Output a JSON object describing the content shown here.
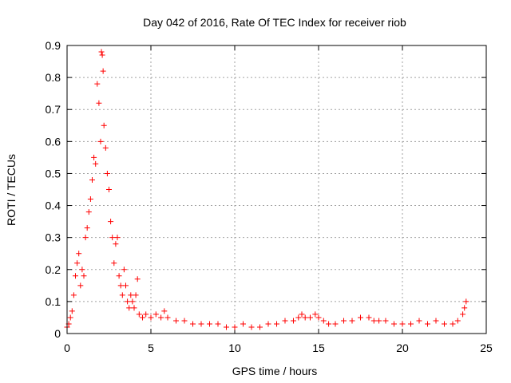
{
  "chart_data": {
    "type": "scatter",
    "title": "Day 042 of 2016, Rate Of TEC Index for receiver riob",
    "xlabel": "GPS time / hours",
    "ylabel": "ROTI / TECUs",
    "xlim": [
      0,
      25
    ],
    "ylim": [
      0,
      0.9
    ],
    "xticks": [
      0,
      5,
      10,
      15,
      20,
      25
    ],
    "xtick_labels": [
      "0",
      "5",
      "10",
      "15",
      "20",
      "25"
    ],
    "yticks": [
      0,
      0.1,
      0.2,
      0.3,
      0.4,
      0.5,
      0.6,
      0.7,
      0.8,
      0.9
    ],
    "ytick_labels": [
      "0",
      "0.1",
      "0.2",
      "0.3",
      "0.4",
      "0.5",
      "0.6",
      "0.7",
      "0.8",
      "0.9"
    ],
    "grid": true,
    "marker": "plus",
    "color": "#ff0000",
    "series": [
      {
        "name": "ROTI",
        "x": [
          0.0,
          0.1,
          0.2,
          0.3,
          0.4,
          0.5,
          0.6,
          0.7,
          0.8,
          0.9,
          1.0,
          1.1,
          1.2,
          1.3,
          1.4,
          1.5,
          1.6,
          1.7,
          1.8,
          1.9,
          2.0,
          2.05,
          2.1,
          2.15,
          2.2,
          2.3,
          2.4,
          2.5,
          2.6,
          2.7,
          2.8,
          2.9,
          3.0,
          3.1,
          3.2,
          3.3,
          3.4,
          3.5,
          3.6,
          3.7,
          3.8,
          3.9,
          4.0,
          4.1,
          4.2,
          4.3,
          4.5,
          4.7,
          5.0,
          5.3,
          5.6,
          5.8,
          6.0,
          6.5,
          7.0,
          7.5,
          8.0,
          8.5,
          9.0,
          9.5,
          10.0,
          10.5,
          11.0,
          11.5,
          12.0,
          12.5,
          13.0,
          13.5,
          13.8,
          14.0,
          14.2,
          14.5,
          14.8,
          15.0,
          15.3,
          15.6,
          16.0,
          16.5,
          17.0,
          17.5,
          18.0,
          18.3,
          18.6,
          19.0,
          19.5,
          20.0,
          20.5,
          21.0,
          21.5,
          22.0,
          22.5,
          23.0,
          23.3,
          23.6,
          23.7,
          23.8
        ],
        "y": [
          0.02,
          0.03,
          0.05,
          0.07,
          0.12,
          0.18,
          0.22,
          0.25,
          0.15,
          0.2,
          0.18,
          0.3,
          0.33,
          0.38,
          0.42,
          0.48,
          0.55,
          0.53,
          0.78,
          0.72,
          0.6,
          0.88,
          0.87,
          0.82,
          0.65,
          0.58,
          0.5,
          0.45,
          0.35,
          0.3,
          0.22,
          0.28,
          0.3,
          0.18,
          0.15,
          0.12,
          0.2,
          0.15,
          0.1,
          0.08,
          0.12,
          0.1,
          0.08,
          0.12,
          0.17,
          0.06,
          0.05,
          0.06,
          0.05,
          0.06,
          0.05,
          0.07,
          0.05,
          0.04,
          0.04,
          0.03,
          0.03,
          0.03,
          0.03,
          0.02,
          0.02,
          0.03,
          0.02,
          0.02,
          0.03,
          0.03,
          0.04,
          0.04,
          0.05,
          0.06,
          0.05,
          0.05,
          0.06,
          0.05,
          0.04,
          0.03,
          0.03,
          0.04,
          0.04,
          0.05,
          0.05,
          0.04,
          0.04,
          0.04,
          0.03,
          0.03,
          0.03,
          0.04,
          0.03,
          0.04,
          0.03,
          0.03,
          0.04,
          0.06,
          0.08,
          0.1
        ]
      }
    ]
  }
}
